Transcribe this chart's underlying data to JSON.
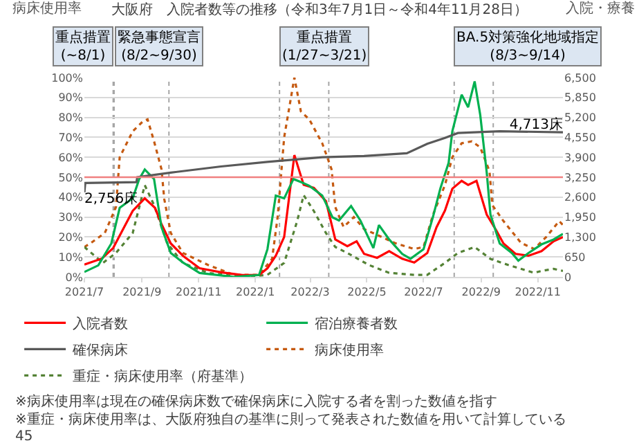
{
  "chart_data": {
    "type": "line",
    "title": "大阪府　入院者数等の推移（令和3年7月1日～令和4年11月28日）",
    "ylabel": "病床使用率",
    "y2label": "入院・療養",
    "xlim": [
      "2021-07-01",
      "2022-11-28"
    ],
    "xticks": [
      {
        "value": "2021-07-01",
        "label": "2021/7"
      },
      {
        "value": "2021-09-01",
        "label": "2021/9"
      },
      {
        "value": "2021-11-01",
        "label": "2021/11"
      },
      {
        "value": "2022-01-01",
        "label": "2022/1"
      },
      {
        "value": "2022-03-01",
        "label": "2022/3"
      },
      {
        "value": "2022-05-01",
        "label": "2022/5"
      },
      {
        "value": "2022-07-01",
        "label": "2022/7"
      },
      {
        "value": "2022-09-01",
        "label": "2022/9"
      },
      {
        "value": "2022-11-01",
        "label": "2022/11"
      }
    ],
    "ylim": [
      0,
      100
    ],
    "yticks": [
      {
        "value": 0,
        "label": "0%"
      },
      {
        "value": 10,
        "label": "10%"
      },
      {
        "value": 20,
        "label": "20%"
      },
      {
        "value": 30,
        "label": "30%"
      },
      {
        "value": 40,
        "label": "40%"
      },
      {
        "value": 50,
        "label": "50%"
      },
      {
        "value": 60,
        "label": "60%"
      },
      {
        "value": 70,
        "label": "70%"
      },
      {
        "value": 80,
        "label": "80%"
      },
      {
        "value": 90,
        "label": "90%"
      },
      {
        "value": 100,
        "label": "100%"
      }
    ],
    "y2lim": [
      0,
      6500
    ],
    "y2ticks": [
      0,
      650,
      {
        "value": 1300,
        "label": "1,300"
      },
      {
        "value": 1950,
        "label": "1,950"
      },
      {
        "value": 2600,
        "label": "2,600"
      },
      {
        "value": 3250,
        "label": "3,250"
      },
      {
        "value": 3900,
        "label": "3,900"
      },
      {
        "value": 4550,
        "label": "4,550"
      },
      {
        "value": 5200,
        "label": "5,200"
      },
      {
        "value": 5850,
        "label": "5,850"
      },
      {
        "value": 6500,
        "label": "6,500"
      }
    ],
    "grid": "y",
    "legend": "bottom",
    "marker": "none",
    "line_style": "solid",
    "series": [
      {
        "name": "入院者数",
        "color": "#ff0000",
        "axis": "y2",
        "x": [
          "2021-07-01",
          "2021-07-20",
          "2021-08-01",
          "2021-08-22",
          "2021-09-04",
          "2021-09-15",
          "2021-09-22",
          "2021-10-02",
          "2021-10-15",
          "2021-11-02",
          "2021-11-25",
          "2021-12-18",
          "2022-01-05",
          "2022-01-14",
          "2022-01-23",
          "2022-02-01",
          "2022-02-12",
          "2022-02-22",
          "2022-03-05",
          "2022-03-18",
          "2022-03-28",
          "2022-04-10",
          "2022-04-20",
          "2022-04-28",
          "2022-05-12",
          "2022-05-25",
          "2022-06-08",
          "2022-06-21",
          "2022-07-05",
          "2022-07-15",
          "2022-07-24",
          "2022-08-01",
          "2022-08-11",
          "2022-08-18",
          "2022-08-27",
          "2022-09-07",
          "2022-09-17",
          "2022-09-25",
          "2022-10-08",
          "2022-10-22",
          "2022-11-05",
          "2022-11-18",
          "2022-11-28"
        ],
        "values": [
          400,
          600,
          940,
          2150,
          2560,
          2250,
          1720,
          1090,
          690,
          280,
          150,
          60,
          60,
          280,
          690,
          1300,
          3970,
          3000,
          2900,
          2470,
          1220,
          1000,
          1160,
          750,
          620,
          840,
          590,
          470,
          780,
          1620,
          2160,
          2875,
          3130,
          3000,
          3130,
          2030,
          1530,
          1090,
          750,
          690,
          840,
          1160,
          1300
        ]
      },
      {
        "name": "宿泊療養者数",
        "color": "#00b050",
        "axis": "y2",
        "x": [
          "2021-07-01",
          "2021-07-16",
          "2021-07-30",
          "2021-08-08",
          "2021-08-22",
          "2021-08-29",
          "2021-09-04",
          "2021-09-14",
          "2021-09-22",
          "2021-10-02",
          "2021-10-15",
          "2021-11-02",
          "2021-12-09",
          "2022-01-05",
          "2022-01-14",
          "2022-01-23",
          "2022-02-01",
          "2022-02-11",
          "2022-02-19",
          "2022-02-28",
          "2022-03-14",
          "2022-03-25",
          "2022-04-01",
          "2022-04-14",
          "2022-04-24",
          "2022-05-08",
          "2022-05-14",
          "2022-05-25",
          "2022-06-08",
          "2022-06-17",
          "2022-07-01",
          "2022-07-11",
          "2022-07-19",
          "2022-07-28",
          "2022-08-01",
          "2022-08-11",
          "2022-08-18",
          "2022-08-25",
          "2022-08-31",
          "2022-09-07",
          "2022-09-11",
          "2022-09-21",
          "2022-10-04",
          "2022-10-11",
          "2022-10-22",
          "2022-11-05",
          "2022-11-18",
          "2022-11-28"
        ],
        "values": [
          160,
          375,
          1090,
          2250,
          2560,
          3190,
          3500,
          3190,
          1620,
          780,
          470,
          125,
          0,
          60,
          900,
          2650,
          2560,
          3190,
          3090,
          2970,
          2650,
          1940,
          1840,
          2310,
          1840,
          940,
          1690,
          1220,
          750,
          590,
          900,
          1940,
          2875,
          3720,
          4750,
          5940,
          5530,
          6375,
          5280,
          3400,
          2030,
          1090,
          780,
          530,
          780,
          1060,
          1220,
          1400
        ]
      },
      {
        "name": "確保病床",
        "color": "#595959",
        "axis": "y2",
        "x": [
          "2021-07-01",
          "2021-07-02",
          "2021-08-26",
          "2021-08-27",
          "2021-10-02",
          "2021-11-25",
          "2022-01-14",
          "2022-03-14",
          "2022-04-28",
          "2022-06-13",
          "2022-07-05",
          "2022-07-24",
          "2022-08-07",
          "2022-09-21",
          "2022-11-28"
        ],
        "values": [
          2756,
          3060,
          3090,
          3250,
          3400,
          3600,
          3750,
          3900,
          3940,
          4030,
          4340,
          4530,
          4690,
          4750,
          4713
        ],
        "value_labels": [
          "2,756床",
          null,
          null,
          null,
          null,
          null,
          null,
          null,
          null,
          null,
          null,
          null,
          null,
          null,
          "4,713床"
        ]
      },
      {
        "name": "病床使用率",
        "color": "#c55a11",
        "line_style": "dotted",
        "x": [
          "2021-07-01",
          "2021-07-08",
          "2021-07-23",
          "2021-08-04",
          "2021-08-08",
          "2021-08-22",
          "2021-09-02",
          "2021-09-07",
          "2021-09-14",
          "2021-09-22",
          "2021-09-25",
          "2021-10-02",
          "2021-10-15",
          "2021-11-11",
          "2021-12-09",
          "2022-01-05",
          "2022-01-19",
          "2022-01-25",
          "2022-02-01",
          "2022-02-08",
          "2022-02-12",
          "2022-02-19",
          "2022-02-28",
          "2022-03-14",
          "2022-03-24",
          "2022-03-28",
          "2022-04-06",
          "2022-04-17",
          "2022-04-28",
          "2022-05-17",
          "2022-05-31",
          "2022-06-21",
          "2022-07-01",
          "2022-07-11",
          "2022-07-24",
          "2022-08-01",
          "2022-08-11",
          "2022-08-22",
          "2022-08-31",
          "2022-09-10",
          "2022-09-13",
          "2022-09-25",
          "2022-10-14",
          "2022-10-28",
          "2022-11-10",
          "2022-11-24",
          "2022-11-28"
        ],
        "values": [
          15,
          17,
          22,
          35,
          60,
          73,
          78,
          79,
          68,
          54,
          39,
          22,
          12,
          6,
          1,
          1,
          9,
          30,
          70,
          89,
          100,
          83,
          79,
          67,
          54,
          35,
          25,
          30,
          24,
          20,
          17,
          14,
          15,
          31,
          46,
          60,
          67,
          68,
          65,
          53,
          36,
          28,
          17,
          14,
          20,
          28,
          26
        ]
      },
      {
        "name": "重症・病床使用率（府基準）",
        "color": "#548235",
        "line_style": "dotted",
        "x": [
          "2021-07-01",
          "2021-07-21",
          "2021-08-04",
          "2021-08-22",
          "2021-09-04",
          "2021-09-14",
          "2021-09-28",
          "2021-10-15",
          "2021-11-11",
          "2021-12-18",
          "2022-01-14",
          "2022-02-01",
          "2022-02-15",
          "2022-02-22",
          "2022-03-05",
          "2022-03-18",
          "2022-03-28",
          "2022-04-10",
          "2022-05-03",
          "2022-05-25",
          "2022-06-21",
          "2022-07-05",
          "2022-07-24",
          "2022-08-07",
          "2022-08-25",
          "2022-09-11",
          "2022-09-30",
          "2022-10-28",
          "2022-11-05",
          "2022-11-18",
          "2022-11-28"
        ],
        "values": [
          15,
          7,
          12,
          22,
          46,
          36,
          17,
          7,
          2,
          0,
          1,
          7,
          28,
          41,
          33,
          22,
          15,
          12,
          6,
          2,
          1,
          1,
          7,
          12,
          15,
          9,
          6,
          2,
          3,
          4,
          3
        ]
      }
    ],
    "ref_lines": [
      {
        "axis": "y",
        "value": 50,
        "label": null,
        "color": "#f08080"
      },
      {
        "axis": "x",
        "value": "2021-08-01",
        "label": "重点措置\n(~8/1)",
        "color": "#a6a6a6",
        "line_style": "dotted"
      },
      {
        "axis": "x",
        "value": "2021-08-02",
        "label": "緊急事態宣言\n(8/2~9/30)",
        "color": "#a6a6a6",
        "line_style": "dotted"
      },
      {
        "axis": "x",
        "value": "2021-09-30",
        "label": null,
        "color": "#a6a6a6",
        "line_style": "dotted"
      },
      {
        "axis": "x",
        "value": "2022-01-27",
        "label": "重点措置\n(1/27~3/21)",
        "color": "#a6a6a6",
        "line_style": "dotted"
      },
      {
        "axis": "x",
        "value": "2022-03-21",
        "label": null,
        "color": "#a6a6a6",
        "line_style": "dotted"
      },
      {
        "axis": "x",
        "value": "2022-08-03",
        "label": "BA.5対策強化地域指定\n(8/3~9/14)",
        "color": "#a6a6a6",
        "line_style": "dotted"
      },
      {
        "axis": "x",
        "value": "2022-09-14",
        "label": null,
        "color": "#a6a6a6",
        "line_style": "dotted"
      }
    ],
    "annotations": [
      "※病床使用率は現在の確保病床数で確保病床に入院する者を割った数値を指す",
      "※重症・病床使用率は、大阪府独自の基準に則って発表された数値を用いて計算している",
      "45"
    ]
  }
}
